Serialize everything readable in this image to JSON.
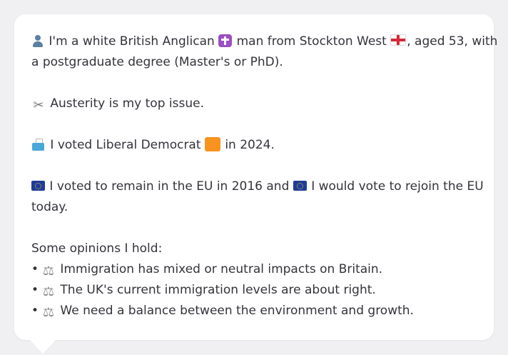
{
  "profile": {
    "line1a": "I'm a white British Anglican",
    "line1b": "man from Stockton West",
    "line1c": ", aged 53, with",
    "line2": "a postgraduate degree (Master's or PhD)."
  },
  "issue": {
    "text": "Austerity is my top issue."
  },
  "vote": {
    "text_a": "I voted Liberal Democrat",
    "text_b": "in 2024."
  },
  "eu": {
    "line1a": "I voted to remain in the EU in 2016 and",
    "line1b": "I would vote to rejoin the EU",
    "line2": "today."
  },
  "opinions": {
    "heading": "Some opinions I hold:",
    "bullet": "•",
    "items": [
      "Immigration has mixed or neutral impacts on Britain.",
      "The UK's current immigration levels are about right.",
      "We need a balance between the environment and growth."
    ]
  },
  "icons": {
    "person": "person-icon",
    "cross": "latin-cross-icon",
    "flag": "england-flag-icon",
    "scissors": "scissors-icon",
    "ballot": "ballot-box-icon",
    "party": "orange-square-icon",
    "eu": "eu-flag-icon",
    "scales": "balance-scale-icon"
  },
  "colors": {
    "background": "#f0f0f3",
    "card": "#ffffff",
    "text": "#33333b",
    "libdem_orange": "#f7931e",
    "eu_blue": "#1f3c98"
  }
}
